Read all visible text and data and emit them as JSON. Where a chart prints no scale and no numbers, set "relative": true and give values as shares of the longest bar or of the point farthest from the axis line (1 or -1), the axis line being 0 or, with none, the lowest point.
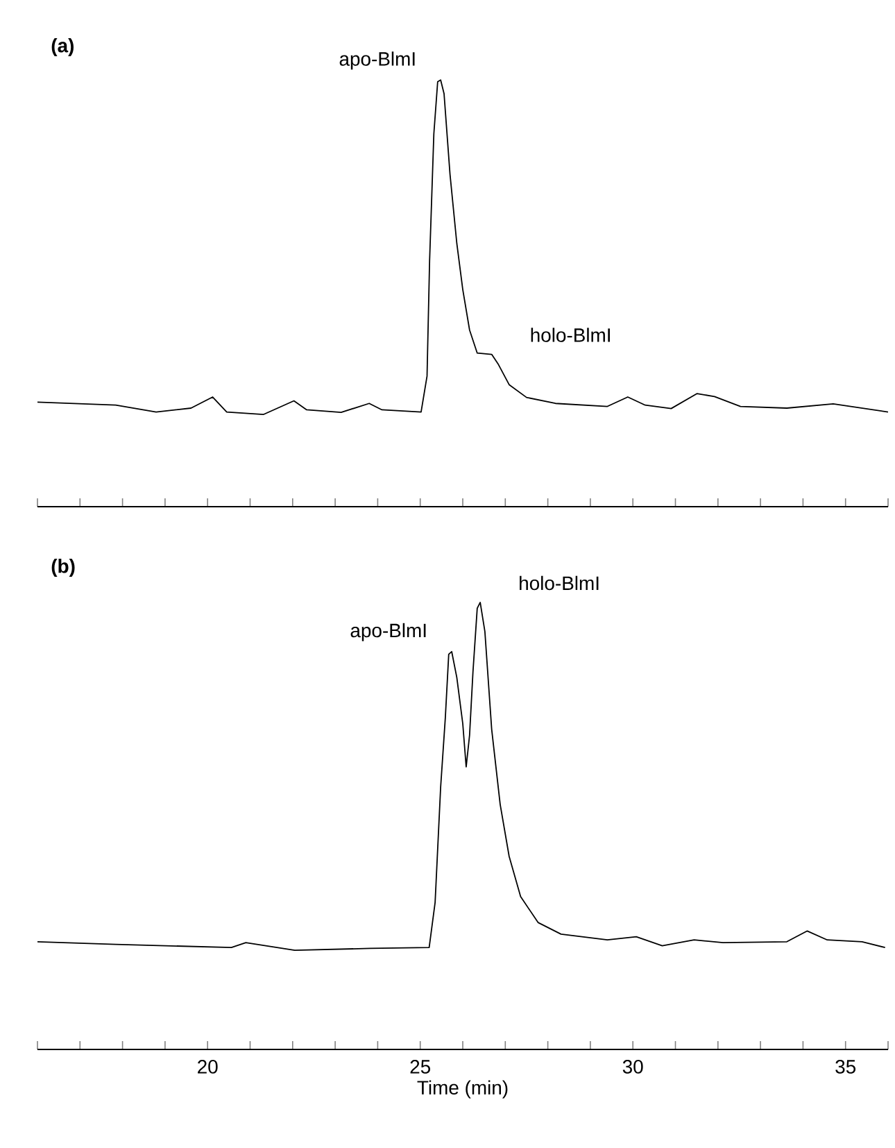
{
  "chart_data": [
    {
      "type": "line",
      "title": "(a)",
      "relative": true,
      "xlim": [
        16,
        36
      ],
      "tick_labels": false,
      "xticks": [
        {
          "value": 16,
          "label": null
        },
        {
          "value": 17,
          "label": null
        },
        {
          "value": 18,
          "label": null
        },
        {
          "value": 19,
          "label": null
        },
        {
          "value": 20,
          "label": null
        },
        {
          "value": 21,
          "label": null
        },
        {
          "value": 22,
          "label": null
        },
        {
          "value": 23,
          "label": null
        },
        {
          "value": 24,
          "label": null
        },
        {
          "value": 25,
          "label": null
        },
        {
          "value": 26,
          "label": null
        },
        {
          "value": 27,
          "label": null
        },
        {
          "value": 28,
          "label": null
        },
        {
          "value": 29,
          "label": null
        },
        {
          "value": 30,
          "label": null
        },
        {
          "value": 31,
          "label": null
        },
        {
          "value": 32,
          "label": null
        },
        {
          "value": 33,
          "label": null
        },
        {
          "value": 34,
          "label": null
        },
        {
          "value": 35,
          "label": null
        },
        {
          "value": 36,
          "label": null
        }
      ],
      "series": [
        {
          "color": "#000000",
          "x": [
            16.0,
            17.84,
            18.79,
            19.61,
            20.12,
            20.45,
            21.31,
            22.03,
            22.33,
            23.14,
            23.8,
            24.1,
            25.02,
            25.16,
            25.22,
            25.32,
            25.41,
            25.48,
            25.56,
            25.7,
            25.86,
            26.0,
            26.16,
            26.34,
            26.68,
            26.84,
            27.09,
            27.5,
            28.18,
            29.4,
            29.88,
            30.29,
            30.9,
            31.51,
            31.92,
            32.53,
            33.62,
            34.71,
            36.0
          ],
          "values": [
            0.245,
            0.238,
            0.222,
            0.231,
            0.257,
            0.222,
            0.216,
            0.248,
            0.227,
            0.221,
            0.242,
            0.227,
            0.222,
            0.306,
            0.576,
            0.874,
            0.996,
            1.0,
            0.968,
            0.779,
            0.617,
            0.509,
            0.414,
            0.36,
            0.357,
            0.333,
            0.286,
            0.256,
            0.242,
            0.235,
            0.257,
            0.238,
            0.23,
            0.265,
            0.258,
            0.235,
            0.231,
            0.241,
            0.222
          ]
        }
      ],
      "annotations": [
        {
          "text": "apo-BlmI",
          "x": 25.48,
          "y": 1.0
        },
        {
          "text": "holo-BlmI",
          "x": 26.68,
          "y": 0.357
        }
      ]
    },
    {
      "type": "line",
      "title": "(b)",
      "relative": true,
      "xlim": [
        16,
        36
      ],
      "tick_labels": "x",
      "xlabel": "Time (min)",
      "xticks": [
        {
          "value": 16,
          "label": null
        },
        {
          "value": 17,
          "label": null
        },
        {
          "value": 18,
          "label": null
        },
        {
          "value": 19,
          "label": null
        },
        {
          "value": 20,
          "label": "20"
        },
        {
          "value": 21,
          "label": null
        },
        {
          "value": 22,
          "label": null
        },
        {
          "value": 23,
          "label": null
        },
        {
          "value": 24,
          "label": null
        },
        {
          "value": 25,
          "label": "25"
        },
        {
          "value": 26,
          "label": null
        },
        {
          "value": 27,
          "label": null
        },
        {
          "value": 28,
          "label": null
        },
        {
          "value": 29,
          "label": null
        },
        {
          "value": 30,
          "label": "30"
        },
        {
          "value": 31,
          "label": null
        },
        {
          "value": 32,
          "label": null
        },
        {
          "value": 33,
          "label": null
        },
        {
          "value": 34,
          "label": null
        },
        {
          "value": 35,
          "label": "35"
        },
        {
          "value": 36,
          "label": null
        }
      ],
      "series": [
        {
          "color": "#000000",
          "x": [
            16.0,
            17.84,
            20.56,
            20.9,
            22.05,
            23.82,
            25.21,
            25.35,
            25.48,
            25.59,
            25.67,
            25.74,
            25.86,
            26.0,
            26.08,
            26.16,
            26.24,
            26.34,
            26.41,
            26.52,
            26.68,
            26.88,
            27.09,
            27.36,
            27.77,
            28.31,
            29.4,
            30.08,
            30.69,
            31.44,
            32.12,
            33.62,
            34.1,
            34.57,
            35.39,
            35.93
          ],
          "values": [
            0.241,
            0.235,
            0.228,
            0.239,
            0.222,
            0.226,
            0.228,
            0.329,
            0.587,
            0.742,
            0.884,
            0.89,
            0.832,
            0.729,
            0.632,
            0.703,
            0.845,
            0.987,
            1.0,
            0.935,
            0.716,
            0.548,
            0.432,
            0.342,
            0.284,
            0.258,
            0.245,
            0.252,
            0.232,
            0.245,
            0.239,
            0.241,
            0.265,
            0.245,
            0.241,
            0.228
          ]
        }
      ],
      "annotations": [
        {
          "text": "apo-BlmI",
          "x": 25.74,
          "y": 0.89
        },
        {
          "text": "holo-BlmI",
          "x": 26.41,
          "y": 1.0
        }
      ]
    }
  ]
}
